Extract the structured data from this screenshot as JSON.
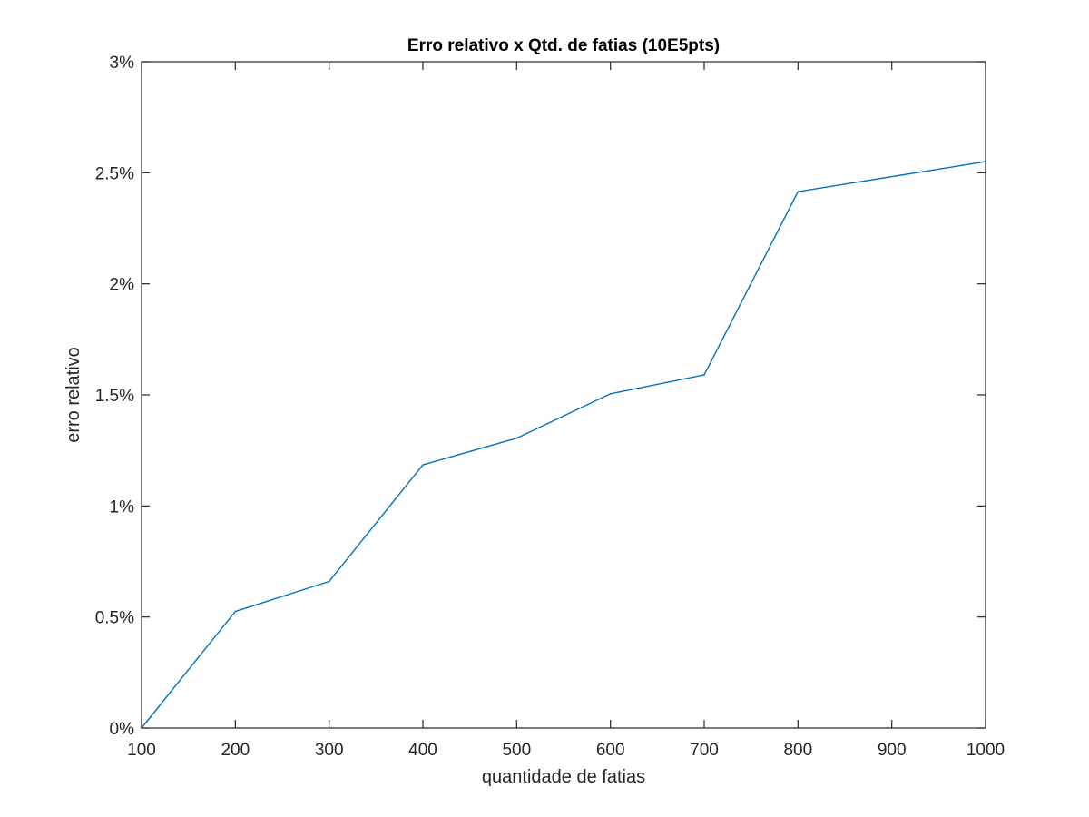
{
  "chart_data": {
    "type": "line",
    "title": "Erro relativo x Qtd. de fatias (10E5pts)",
    "xlabel": "quantidade de fatias",
    "ylabel": "erro relativo",
    "xlim": [
      100,
      1000
    ],
    "ylim": [
      0,
      3
    ],
    "x_ticks": [
      100,
      200,
      300,
      400,
      500,
      600,
      700,
      800,
      900,
      1000
    ],
    "x_tick_labels": [
      "100",
      "200",
      "300",
      "400",
      "500",
      "600",
      "700",
      "800",
      "900",
      "1000"
    ],
    "y_ticks": [
      0,
      0.5,
      1,
      1.5,
      2,
      2.5,
      3
    ],
    "y_tick_labels": [
      "0%",
      "0.5%",
      "1%",
      "1.5%",
      "2%",
      "2.5%",
      "3%"
    ],
    "y_unit": "%",
    "grid": false,
    "box": true,
    "legend": "none",
    "series": [
      {
        "color": "#0072BD",
        "x": [
          100,
          200,
          300,
          400,
          500,
          600,
          700,
          800,
          1000
        ],
        "y": [
          0.0,
          0.525,
          0.66,
          1.185,
          1.305,
          1.505,
          1.59,
          2.415,
          2.55
        ]
      }
    ]
  }
}
